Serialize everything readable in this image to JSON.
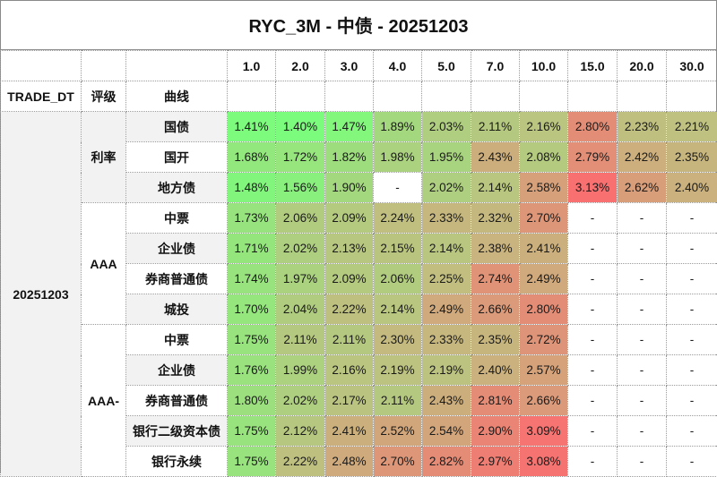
{
  "title": "RYC_3M - 中债 - 20251203",
  "header": {
    "tenors": [
      "1.0",
      "2.0",
      "3.0",
      "4.0",
      "5.0",
      "7.0",
      "10.0",
      "15.0",
      "20.0",
      "30.0"
    ],
    "trade_dt_label": "TRADE_DT",
    "rating_label": "评级",
    "curve_label": "曲线"
  },
  "trade_dt": "20251203",
  "groups": [
    {
      "rating": "利率",
      "rows": [
        {
          "curve": "国债",
          "values": [
            "1.41%",
            "1.40%",
            "1.47%",
            "1.89%",
            "2.03%",
            "2.11%",
            "2.16%",
            "2.80%",
            "2.23%",
            "2.21%"
          ]
        },
        {
          "curve": "国开",
          "values": [
            "1.68%",
            "1.72%",
            "1.82%",
            "1.98%",
            "1.95%",
            "2.43%",
            "2.08%",
            "2.79%",
            "2.42%",
            "2.35%"
          ]
        },
        {
          "curve": "地方债",
          "values": [
            "1.48%",
            "1.56%",
            "1.90%",
            "-",
            "2.02%",
            "2.14%",
            "2.58%",
            "3.13%",
            "2.62%",
            "2.40%"
          ]
        }
      ]
    },
    {
      "rating": "AAA",
      "rows": [
        {
          "curve": "中票",
          "values": [
            "1.73%",
            "2.06%",
            "2.09%",
            "2.24%",
            "2.33%",
            "2.32%",
            "2.70%",
            "-",
            "-",
            "-"
          ]
        },
        {
          "curve": "企业债",
          "values": [
            "1.71%",
            "2.02%",
            "2.13%",
            "2.15%",
            "2.14%",
            "2.38%",
            "2.41%",
            "-",
            "-",
            "-"
          ]
        },
        {
          "curve": "券商普通债",
          "values": [
            "1.74%",
            "1.97%",
            "2.09%",
            "2.06%",
            "2.25%",
            "2.74%",
            "2.49%",
            "-",
            "-",
            "-"
          ]
        },
        {
          "curve": "城投",
          "values": [
            "1.70%",
            "2.04%",
            "2.22%",
            "2.14%",
            "2.49%",
            "2.66%",
            "2.80%",
            "-",
            "-",
            "-"
          ]
        }
      ]
    },
    {
      "rating": "AAA-",
      "rows": [
        {
          "curve": "中票",
          "values": [
            "1.75%",
            "2.11%",
            "2.11%",
            "2.30%",
            "2.33%",
            "2.35%",
            "2.72%",
            "-",
            "-",
            "-"
          ]
        },
        {
          "curve": "企业债",
          "values": [
            "1.76%",
            "1.99%",
            "2.16%",
            "2.19%",
            "2.19%",
            "2.40%",
            "2.57%",
            "-",
            "-",
            "-"
          ]
        },
        {
          "curve": "券商普通债",
          "values": [
            "1.80%",
            "2.02%",
            "2.17%",
            "2.11%",
            "2.43%",
            "2.81%",
            "2.66%",
            "-",
            "-",
            "-"
          ]
        },
        {
          "curve": "银行二级资本债",
          "values": [
            "1.75%",
            "2.12%",
            "2.41%",
            "2.52%",
            "2.54%",
            "2.90%",
            "3.09%",
            "-",
            "-",
            "-"
          ]
        },
        {
          "curve": "银行永续",
          "values": [
            "1.75%",
            "2.22%",
            "2.48%",
            "2.70%",
            "2.82%",
            "2.97%",
            "3.08%",
            "-",
            "-",
            "-"
          ]
        }
      ]
    }
  ],
  "color_scale": {
    "low": "#7cfc7c",
    "mid": "#c2bd80",
    "high": "#f87070",
    "min": 1.4,
    "max": 3.13
  }
}
